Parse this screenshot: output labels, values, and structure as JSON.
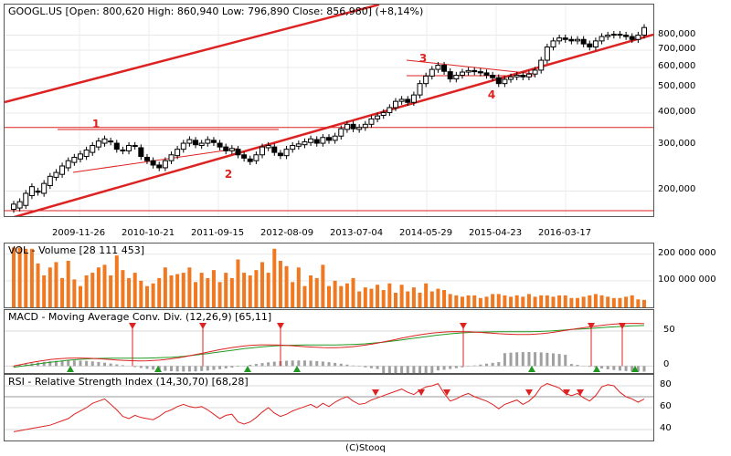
{
  "footer": "(C)Stooq",
  "chart_data": [
    {
      "type": "candlestick",
      "title": "GOOGL.US [Open: 800,620  High: 860,940  Low: 796,890  Close: 856,980] (+8,14%)",
      "x_ticks": [
        "2009-11-26",
        "2010-10-21",
        "2011-09-15",
        "2012-08-09",
        "2013-07-04",
        "2014-05-29",
        "2015-04-23",
        "2016-03-17"
      ],
      "y_ticks": [
        "800,000",
        "700,000",
        "600,000",
        "500,000",
        "400,000",
        "300,000",
        "200,000"
      ],
      "y_scale": "log",
      "ylim": [
        160,
        1050
      ],
      "candles": [
        [
          170,
          178
        ],
        [
          172,
          182
        ],
        [
          176,
          196
        ],
        [
          192,
          208
        ],
        [
          200,
          198
        ],
        [
          196,
          214
        ],
        [
          210,
          228
        ],
        [
          226,
          236
        ],
        [
          232,
          250
        ],
        [
          246,
          262
        ],
        [
          258,
          270
        ],
        [
          266,
          278
        ],
        [
          272,
          288
        ],
        [
          282,
          300
        ],
        [
          296,
          312
        ],
        [
          306,
          318
        ],
        [
          312,
          310
        ],
        [
          306,
          290
        ],
        [
          288,
          286
        ],
        [
          286,
          300
        ],
        [
          300,
          298
        ],
        [
          294,
          272
        ],
        [
          270,
          262
        ],
        [
          262,
          252
        ],
        [
          252,
          246
        ],
        [
          246,
          262
        ],
        [
          262,
          276
        ],
        [
          274,
          290
        ],
        [
          290,
          306
        ],
        [
          306,
          316
        ],
        [
          314,
          302
        ],
        [
          300,
          306
        ],
        [
          306,
          316
        ],
        [
          314,
          308
        ],
        [
          306,
          296
        ],
        [
          296,
          286
        ],
        [
          286,
          292
        ],
        [
          290,
          276
        ],
        [
          276,
          268
        ],
        [
          266,
          260
        ],
        [
          262,
          276
        ],
        [
          276,
          296
        ],
        [
          294,
          300
        ],
        [
          296,
          282
        ],
        [
          280,
          274
        ],
        [
          274,
          290
        ],
        [
          290,
          300
        ],
        [
          298,
          304
        ],
        [
          302,
          310
        ],
        [
          308,
          318
        ],
        [
          316,
          306
        ],
        [
          306,
          322
        ],
        [
          322,
          314
        ],
        [
          314,
          326
        ],
        [
          326,
          348
        ],
        [
          346,
          362
        ],
        [
          362,
          348
        ],
        [
          346,
          352
        ],
        [
          352,
          362
        ],
        [
          362,
          380
        ],
        [
          380,
          390
        ],
        [
          392,
          402
        ],
        [
          402,
          420
        ],
        [
          420,
          444
        ],
        [
          444,
          452
        ],
        [
          452,
          440
        ],
        [
          440,
          470
        ],
        [
          470,
          520
        ],
        [
          520,
          556
        ],
        [
          556,
          590
        ],
        [
          590,
          612
        ],
        [
          612,
          580
        ],
        [
          578,
          542
        ],
        [
          542,
          560
        ],
        [
          560,
          576
        ],
        [
          576,
          584
        ],
        [
          584,
          578
        ],
        [
          578,
          572
        ],
        [
          572,
          560
        ],
        [
          560,
          548
        ],
        [
          548,
          520
        ],
        [
          520,
          540
        ],
        [
          540,
          552
        ],
        [
          552,
          560
        ],
        [
          560,
          552
        ],
        [
          552,
          566
        ],
        [
          566,
          586
        ],
        [
          586,
          640
        ],
        [
          640,
          720
        ],
        [
          720,
          760
        ],
        [
          760,
          780
        ],
        [
          780,
          770
        ],
        [
          770,
          760
        ],
        [
          760,
          770
        ],
        [
          770,
          740
        ],
        [
          740,
          720
        ],
        [
          720,
          760
        ],
        [
          760,
          790
        ],
        [
          790,
          800
        ],
        [
          800,
          806
        ],
        [
          806,
          800
        ],
        [
          800,
          790
        ],
        [
          790,
          770
        ],
        [
          770,
          800
        ],
        [
          800,
          856
        ]
      ],
      "annotations": [
        "1",
        "2",
        "3",
        "4"
      ]
    },
    {
      "type": "bar",
      "title": "VOL - Volume [28 111 453]",
      "y_ticks": [
        "200 000 000",
        "100 000 000"
      ],
      "ylim": [
        0,
        240000000
      ],
      "values": [
        225,
        225,
        220,
        220,
        165,
        120,
        150,
        170,
        110,
        175,
        105,
        80,
        120,
        130,
        150,
        160,
        120,
        195,
        140,
        110,
        130,
        100,
        80,
        90,
        110,
        150,
        120,
        125,
        130,
        150,
        95,
        130,
        110,
        140,
        95,
        130,
        110,
        180,
        130,
        120,
        140,
        170,
        130,
        220,
        175,
        155,
        95,
        150,
        80,
        120,
        110,
        160,
        80,
        100,
        80,
        90,
        110,
        60,
        75,
        70,
        85,
        65,
        90,
        55,
        85,
        60,
        75,
        55,
        90,
        60,
        70,
        65,
        50,
        45,
        40,
        45,
        45,
        35,
        40,
        50,
        50,
        45,
        40,
        45,
        40,
        50,
        40,
        45,
        45,
        40,
        45,
        45,
        35,
        35,
        40,
        45,
        50,
        45,
        40,
        35,
        35,
        40,
        45,
        30,
        28
      ]
    },
    {
      "type": "line",
      "title": "MACD - Moving Average Conv. Div. (12,26,9) [65,11]",
      "y_ticks": [
        "50",
        "0"
      ],
      "ylim": [
        -10,
        80
      ]
    },
    {
      "type": "line",
      "title": "RSI - Relative Strength Index (14,30,70) [68,28]",
      "y_ticks": [
        "80",
        "60",
        "40"
      ],
      "ylim": [
        30,
        90
      ],
      "values": [
        38,
        39,
        40,
        41,
        42,
        43,
        44,
        46,
        48,
        50,
        54,
        57,
        60,
        64,
        66,
        68,
        63,
        58,
        52,
        50,
        53,
        51,
        50,
        49,
        52,
        56,
        58,
        61,
        63,
        61,
        60,
        61,
        58,
        54,
        50,
        53,
        54,
        47,
        45,
        47,
        51,
        56,
        60,
        55,
        52,
        54,
        57,
        59,
        61,
        63,
        60,
        64,
        61,
        65,
        68,
        70,
        66,
        63,
        64,
        67,
        69,
        71,
        73,
        75,
        77,
        74,
        72,
        76,
        79,
        80,
        82,
        73,
        66,
        68,
        71,
        73,
        70,
        68,
        66,
        63,
        59,
        63,
        65,
        67,
        63,
        66,
        71,
        79,
        82,
        80,
        78,
        73,
        71,
        73,
        69,
        66,
        71,
        79,
        81,
        80,
        74,
        70,
        68,
        65,
        68
      ]
    }
  ]
}
